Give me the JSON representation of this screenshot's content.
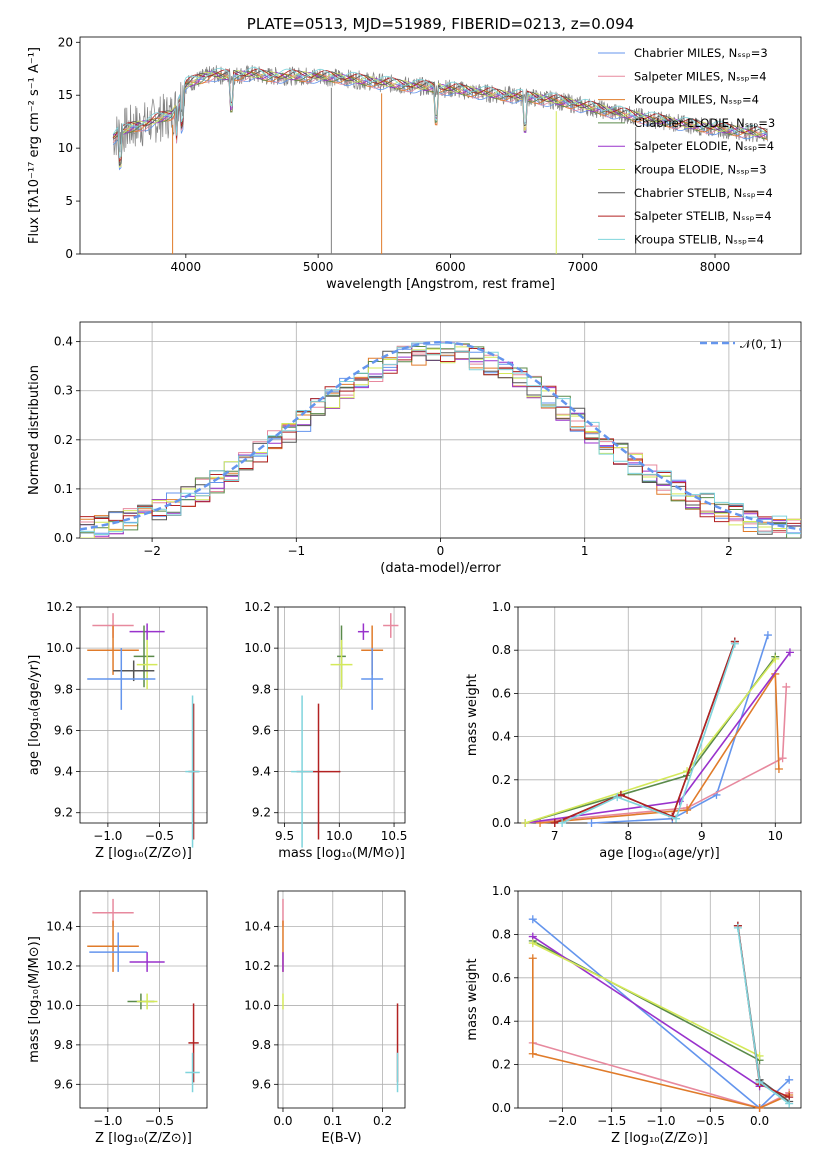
{
  "chart_data": [
    {
      "id": "spectrum",
      "type": "line",
      "title": "PLATE=0513, MJD=51989, FIBERID=0213, z=0.094",
      "xlabel": "wavelength [Angstrom, rest frame]",
      "ylabel": "Flux [fλ10⁻¹⁷ erg cm⁻² s⁻¹ A⁻¹]",
      "xlim": [
        3200,
        8650
      ],
      "ylim": [
        0,
        20.5
      ],
      "xticks": [
        4000,
        5000,
        6000,
        7000,
        8000
      ],
      "yticks": [
        0,
        5,
        10,
        15,
        20
      ],
      "grid": false,
      "legend_position": "top-right",
      "data": {
        "x": [
          3450,
          3500,
          3600,
          3700,
          3800,
          3900,
          4000,
          4100,
          4200,
          4300,
          4400,
          4500,
          4600,
          4800,
          5000,
          5200,
          5400,
          5600,
          5800,
          6000,
          6200,
          6400,
          6600,
          6800,
          7000,
          7200,
          7400,
          7600,
          7800,
          8000,
          8200,
          8400
        ],
        "y": [
          11.0,
          11.5,
          12.0,
          12.3,
          12.8,
          13.2,
          16.0,
          16.5,
          17.0,
          16.8,
          16.9,
          17.0,
          16.8,
          16.8,
          16.8,
          16.6,
          16.3,
          16.0,
          15.8,
          15.6,
          15.3,
          15.0,
          14.8,
          14.5,
          14.0,
          13.5,
          13.0,
          12.6,
          12.2,
          11.9,
          11.6,
          11.3
        ]
      },
      "series": [
        {
          "name": "Chabrier MILES, N_SSP=3",
          "color": "#6495ed"
        },
        {
          "name": "Salpeter MILES, N_SSP=4",
          "color": "#e7899e"
        },
        {
          "name": "Kroupa MILES, N_SSP=4",
          "color": "#e07b2a"
        },
        {
          "name": "Chabrier ELODIE, N_SSP=3",
          "color": "#5a8a4a"
        },
        {
          "name": "Salpeter ELODIE, N_SSP=4",
          "color": "#9932cc"
        },
        {
          "name": "Kroupa ELODIE, N_SSP=3",
          "color": "#d4e95a"
        },
        {
          "name": "Chabrier STELIB, N_SSP=4",
          "color": "#555555"
        },
        {
          "name": "Salpeter STELIB, N_SSP=4",
          "color": "#b22222"
        },
        {
          "name": "Kroupa STELIB, N_SSP=4",
          "color": "#7fd4dc"
        }
      ]
    },
    {
      "id": "residuals",
      "type": "line",
      "xlabel": "(data-model)/error",
      "ylabel": "Normed distribution",
      "xlim": [
        -2.5,
        2.5
      ],
      "ylim": [
        0,
        0.44
      ],
      "xticks": [
        -2,
        -1,
        0,
        1,
        2
      ],
      "yticks": [
        0.0,
        0.1,
        0.2,
        0.3,
        0.4
      ],
      "grid": true,
      "legend_position": "top-right",
      "legend_label": "𝒩(0, 1)",
      "histogram": {
        "x": [
          -2.5,
          -2.25,
          -2.0,
          -1.75,
          -1.5,
          -1.25,
          -1.0,
          -0.75,
          -0.5,
          -0.25,
          0.0,
          0.25,
          0.5,
          0.75,
          1.0,
          1.25,
          1.5,
          1.75,
          2.0,
          2.25,
          2.5
        ],
        "y": [
          0.04,
          0.06,
          0.1,
          0.16,
          0.2,
          0.24,
          0.27,
          0.33,
          0.36,
          0.38,
          0.37,
          0.35,
          0.34,
          0.32,
          0.3,
          0.23,
          0.17,
          0.11,
          0.07,
          0.05,
          0.04
        ]
      }
    },
    {
      "id": "age-vs-Z",
      "type": "scatter",
      "xlabel": "Z [log₁₀(Z/Z⊙)]",
      "ylabel": "age  [log₁₀(age/yr)]",
      "xlim": [
        -1.27,
        -0.04
      ],
      "ylim": [
        9.15,
        10.2
      ],
      "xticks": [
        -1.0,
        -0.5
      ],
      "yticks": [
        9.2,
        9.4,
        9.6,
        9.8,
        10.0,
        10.2
      ],
      "grid": true,
      "points": [
        {
          "x": -0.95,
          "y": 10.11,
          "xerr": 0.2,
          "yerr": 0.06,
          "color": "#e7899e"
        },
        {
          "x": -0.62,
          "y": 10.08,
          "xerr": 0.17,
          "yerr": 0.04,
          "color": "#9932cc"
        },
        {
          "x": -0.95,
          "y": 9.99,
          "xerr": 0.25,
          "yerr": 0.12,
          "color": "#e07b2a"
        },
        {
          "x": -0.65,
          "y": 9.96,
          "xerr": 0.1,
          "yerr": 0.15,
          "color": "#5a8a4a"
        },
        {
          "x": -0.62,
          "y": 9.92,
          "xerr": 0.1,
          "yerr": 0.12,
          "color": "#d4e95a"
        },
        {
          "x": -0.75,
          "y": 9.89,
          "xerr": 0.2,
          "yerr": 0.05,
          "color": "#555555"
        },
        {
          "x": -0.87,
          "y": 9.85,
          "xerr": 0.33,
          "yerr": 0.15,
          "color": "#6495ed"
        },
        {
          "x": -0.17,
          "y": 9.4,
          "xerr": 0.05,
          "yerr": 0.33,
          "color": "#b22222"
        },
        {
          "x": -0.18,
          "y": 9.4,
          "xerr": 0.07,
          "yerr": 0.37,
          "color": "#7fd4dc"
        }
      ]
    },
    {
      "id": "age-vs-mass",
      "type": "scatter",
      "xlabel": "mass [log₁₀(M/M⊙)]",
      "xlim": [
        9.44,
        10.6
      ],
      "ylim": [
        9.15,
        10.2
      ],
      "xticks": [
        9.5,
        10.0,
        10.5
      ],
      "yticks": [
        9.2,
        9.4,
        9.6,
        9.8,
        10.0,
        10.2
      ],
      "grid": true,
      "points": [
        {
          "x": 10.47,
          "y": 10.11,
          "xerr": 0.07,
          "yerr": 0.06,
          "color": "#e7899e"
        },
        {
          "x": 10.22,
          "y": 10.08,
          "xerr": 0.05,
          "yerr": 0.04,
          "color": "#9932cc"
        },
        {
          "x": 10.3,
          "y": 9.99,
          "xerr": 0.1,
          "yerr": 0.12,
          "color": "#e07b2a"
        },
        {
          "x": 10.02,
          "y": 9.96,
          "xerr": 0.04,
          "yerr": 0.15,
          "color": "#5a8a4a"
        },
        {
          "x": 10.02,
          "y": 9.92,
          "xerr": 0.1,
          "yerr": 0.12,
          "color": "#d4e95a"
        },
        {
          "x": 10.3,
          "y": 9.85,
          "xerr": 0.1,
          "yerr": 0.15,
          "color": "#6495ed"
        },
        {
          "x": 9.81,
          "y": 9.4,
          "xerr": 0.2,
          "yerr": 0.33,
          "color": "#b22222"
        },
        {
          "x": 9.66,
          "y": 9.4,
          "xerr": 0.1,
          "yerr": 0.37,
          "color": "#7fd4dc"
        }
      ]
    },
    {
      "id": "mass-weight-vs-age",
      "type": "line",
      "xlabel": "age  [log₁₀(age/yr)]",
      "ylabel": "mass weight",
      "xlim": [
        6.5,
        10.35
      ],
      "ylim": [
        0,
        1.0
      ],
      "xticks": [
        7,
        8,
        9,
        10
      ],
      "yticks": [
        0.0,
        0.2,
        0.4,
        0.6,
        0.8,
        1.0
      ],
      "grid": true,
      "series": [
        {
          "name": "Chabrier MILES",
          "color": "#6495ed",
          "x": [
            7.5,
            8.6,
            9.2,
            9.9
          ],
          "y": [
            0.0,
            0.02,
            0.13,
            0.87
          ]
        },
        {
          "name": "Salpeter MILES",
          "color": "#e7899e",
          "x": [
            6.6,
            8.8,
            10.1,
            10.15
          ],
          "y": [
            0.0,
            0.07,
            0.3,
            0.63
          ]
        },
        {
          "name": "Kroupa MILES",
          "color": "#e07b2a",
          "x": [
            6.8,
            8.8,
            10.0,
            10.05
          ],
          "y": [
            0.0,
            0.06,
            0.69,
            0.25
          ]
        },
        {
          "name": "Chabrier ELODIE",
          "color": "#5a8a4a",
          "x": [
            6.6,
            8.8,
            10.0
          ],
          "y": [
            0.0,
            0.22,
            0.77
          ]
        },
        {
          "name": "Salpeter ELODIE",
          "color": "#9932cc",
          "x": [
            6.6,
            8.7,
            10.2
          ],
          "y": [
            0.0,
            0.1,
            0.79
          ]
        },
        {
          "name": "Kroupa ELODIE",
          "color": "#d4e95a",
          "x": [
            6.6,
            8.8,
            10.0
          ],
          "y": [
            0.0,
            0.24,
            0.76
          ]
        },
        {
          "name": "Chabrier STELIB",
          "color": "#555555",
          "x": [
            7.0,
            7.9,
            8.6,
            9.45
          ],
          "y": [
            0.0,
            0.13,
            0.03,
            0.84
          ]
        },
        {
          "name": "Salpeter STELIB",
          "color": "#b22222",
          "x": [
            7.0,
            7.9,
            8.6,
            9.45
          ],
          "y": [
            0.0,
            0.13,
            0.03,
            0.84
          ]
        },
        {
          "name": "Kroupa STELIB",
          "color": "#7fd4dc",
          "x": [
            7.1,
            7.85,
            8.65,
            9.45
          ],
          "y": [
            0.0,
            0.12,
            0.02,
            0.83
          ]
        }
      ]
    },
    {
      "id": "mass-vs-Z",
      "type": "scatter",
      "xlabel": "Z [log₁₀(Z/Z⊙)]",
      "ylabel": "mass [log₁₀(M/M⊙)]",
      "xlim": [
        -1.27,
        -0.04
      ],
      "ylim": [
        9.48,
        10.58
      ],
      "xticks": [
        -1.0,
        -0.5
      ],
      "yticks": [
        9.6,
        9.8,
        10.0,
        10.2,
        10.4
      ],
      "grid": true,
      "points": [
        {
          "x": -0.95,
          "y": 10.47,
          "xerr": 0.2,
          "yerr": 0.07,
          "color": "#e7899e"
        },
        {
          "x": -0.95,
          "y": 10.3,
          "xerr": 0.25,
          "yerr": 0.13,
          "color": "#e07b2a"
        },
        {
          "x": -0.9,
          "y": 10.27,
          "xerr": 0.28,
          "yerr": 0.1,
          "color": "#6495ed"
        },
        {
          "x": -0.62,
          "y": 10.22,
          "xerr": 0.17,
          "yerr": 0.05,
          "color": "#9932cc"
        },
        {
          "x": -0.68,
          "y": 10.02,
          "xerr": 0.13,
          "yerr": 0.04,
          "color": "#5a8a4a"
        },
        {
          "x": -0.62,
          "y": 10.02,
          "xerr": 0.1,
          "yerr": 0.04,
          "color": "#d4e95a"
        },
        {
          "x": -0.17,
          "y": 9.81,
          "xerr": 0.05,
          "yerr": 0.2,
          "color": "#b22222"
        },
        {
          "x": -0.18,
          "y": 9.66,
          "xerr": 0.07,
          "yerr": 0.1,
          "color": "#7fd4dc"
        }
      ]
    },
    {
      "id": "mass-vs-EBV",
      "type": "scatter",
      "xlabel": "E(B-V)",
      "xlim": [
        -0.01,
        0.245
      ],
      "ylim": [
        9.48,
        10.58
      ],
      "xticks": [
        0.0,
        0.1,
        0.2
      ],
      "yticks": [
        9.6,
        9.8,
        10.0,
        10.2,
        10.4
      ],
      "grid": true,
      "points": [
        {
          "x": 0.0,
          "y": 10.47,
          "xerr": 0.0,
          "yerr": 0.07,
          "color": "#e7899e"
        },
        {
          "x": 0.0,
          "y": 10.3,
          "xerr": 0.0,
          "yerr": 0.13,
          "color": "#e07b2a"
        },
        {
          "x": 0.0,
          "y": 10.22,
          "xerr": 0.0,
          "yerr": 0.05,
          "color": "#9932cc"
        },
        {
          "x": 0.0,
          "y": 10.02,
          "xerr": 0.0,
          "yerr": 0.04,
          "color": "#d4e95a"
        },
        {
          "x": 0.23,
          "y": 9.81,
          "xerr": 0.0,
          "yerr": 0.2,
          "color": "#b22222"
        },
        {
          "x": 0.23,
          "y": 9.66,
          "xerr": 0.0,
          "yerr": 0.1,
          "color": "#7fd4dc"
        }
      ]
    },
    {
      "id": "mass-weight-vs-Z",
      "type": "line",
      "xlabel": "Z [log₁₀(Z/Z⊙)]",
      "ylabel": "mass weight",
      "xlim": [
        -2.45,
        0.42
      ],
      "ylim": [
        0,
        1.0
      ],
      "xticks": [
        -2.0,
        -1.5,
        -1.0,
        -0.5,
        0.0
      ],
      "yticks": [
        0.0,
        0.2,
        0.4,
        0.6,
        0.8,
        1.0
      ],
      "grid": true,
      "series": [
        {
          "name": "Chabrier MILES",
          "color": "#6495ed",
          "x": [
            -2.3,
            0.0,
            0.3
          ],
          "y": [
            0.87,
            0.0,
            0.13
          ]
        },
        {
          "name": "Salpeter MILES",
          "color": "#e7899e",
          "x": [
            -2.3,
            0.0,
            0.3
          ],
          "y": [
            0.3,
            0.0,
            0.07
          ]
        },
        {
          "name": "Kroupa MILES",
          "color": "#e07b2a",
          "x": [
            -2.3,
            -2.3,
            0.0,
            0.3
          ],
          "y": [
            0.69,
            0.25,
            0.0,
            0.06
          ]
        },
        {
          "name": "Chabrier ELODIE",
          "color": "#5a8a4a",
          "x": [
            -2.3,
            0.0
          ],
          "y": [
            0.77,
            0.22
          ]
        },
        {
          "name": "Salpeter ELODIE",
          "color": "#9932cc",
          "x": [
            -2.3,
            0.0
          ],
          "y": [
            0.79,
            0.1
          ]
        },
        {
          "name": "Kroupa ELODIE",
          "color": "#d4e95a",
          "x": [
            -2.3,
            0.0
          ],
          "y": [
            0.76,
            0.24
          ]
        },
        {
          "name": "Chabrier STELIB",
          "color": "#555555",
          "x": [
            -0.22,
            0.0,
            0.3
          ],
          "y": [
            0.84,
            0.13,
            0.03
          ]
        },
        {
          "name": "Salpeter STELIB",
          "color": "#b22222",
          "x": [
            -0.22,
            0.0,
            0.3
          ],
          "y": [
            0.84,
            0.11,
            0.05
          ]
        },
        {
          "name": "Kroupa STELIB",
          "color": "#7fd4dc",
          "x": [
            -0.22,
            0.0,
            0.3
          ],
          "y": [
            0.83,
            0.12,
            0.02
          ]
        }
      ]
    }
  ]
}
